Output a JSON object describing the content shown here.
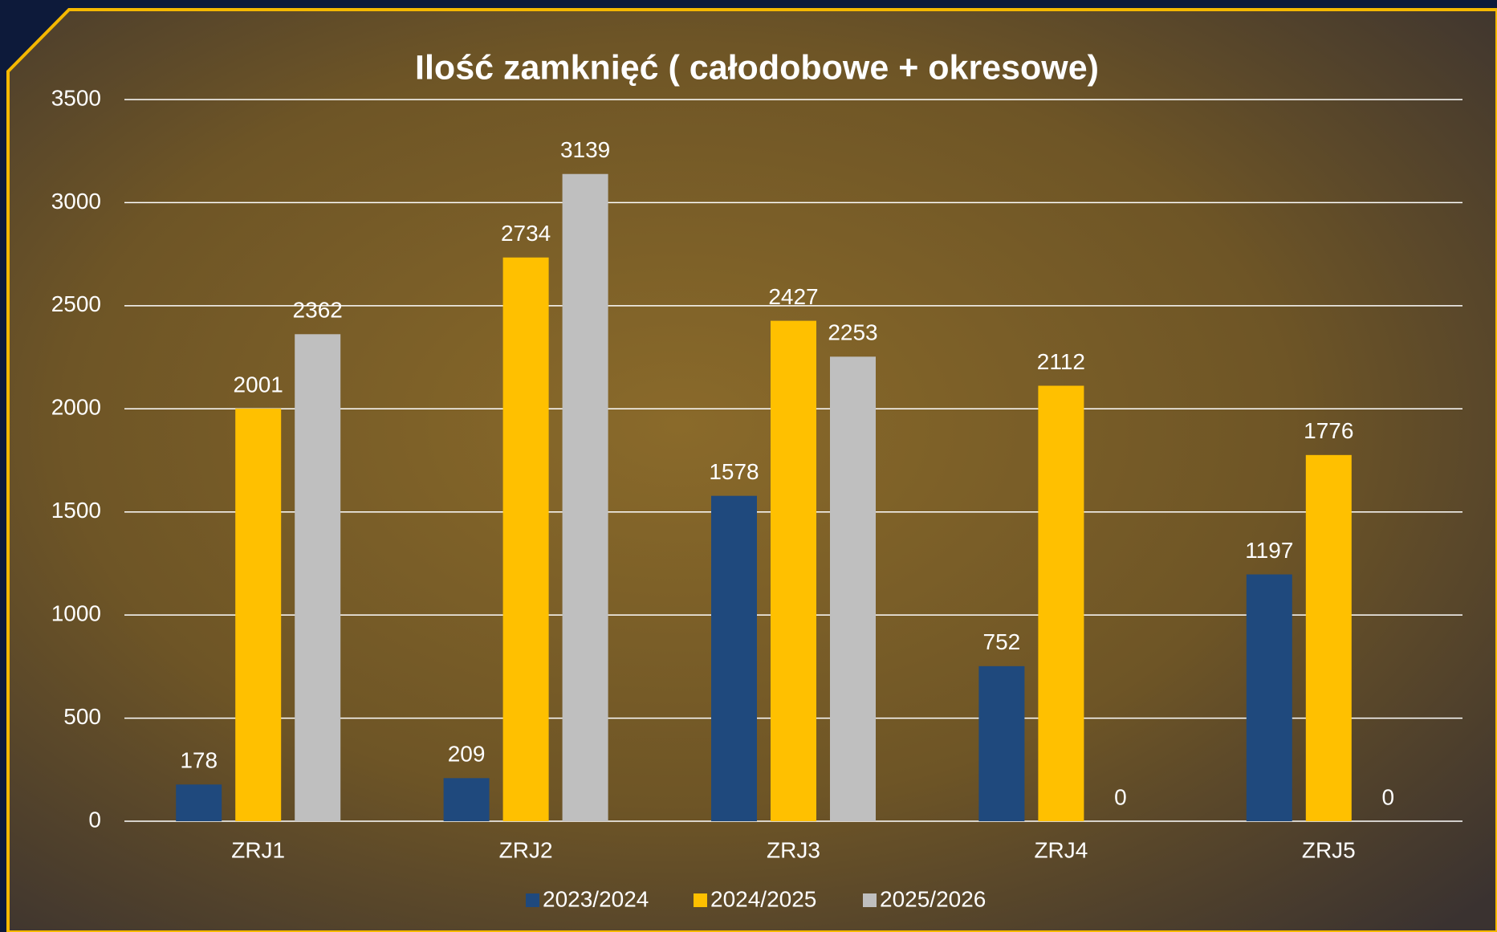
{
  "chart_data": {
    "type": "bar",
    "title": "Ilość zamknięć ( całodobowe + okresowe)",
    "categories": [
      "ZRJ1",
      "ZRJ2",
      "ZRJ3",
      "ZRJ4",
      "ZRJ5"
    ],
    "series": [
      {
        "name": "2023/2024",
        "color": "#1f497d",
        "values": [
          178,
          209,
          1578,
          752,
          1197
        ]
      },
      {
        "name": "2024/2025",
        "color": "#ffc000",
        "values": [
          2001,
          2734,
          2427,
          2112,
          1776
        ]
      },
      {
        "name": "2025/2026",
        "color": "#bfbfbf",
        "values": [
          2362,
          3139,
          2253,
          0,
          0
        ]
      }
    ],
    "ylim": [
      0,
      3500
    ],
    "yticks": [
      0,
      500,
      1000,
      1500,
      2000,
      2500,
      3000,
      3500
    ],
    "grid": true,
    "legend": "bottom"
  }
}
